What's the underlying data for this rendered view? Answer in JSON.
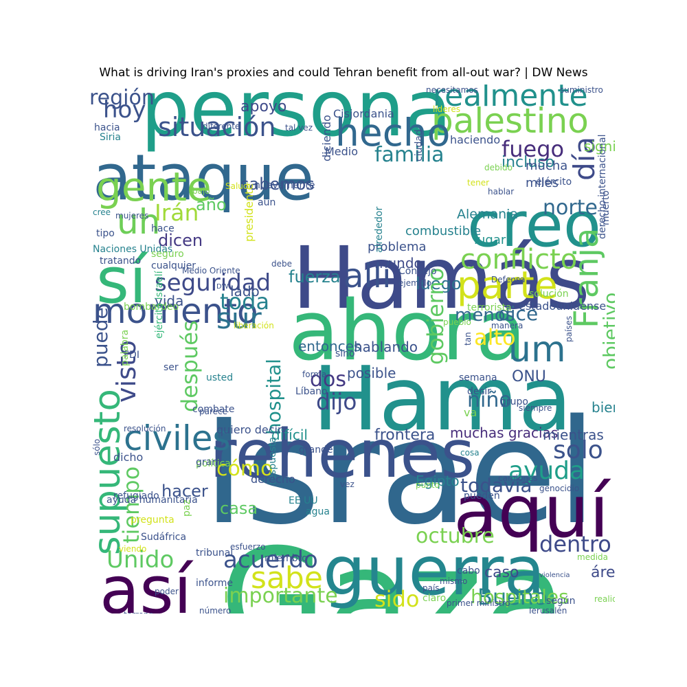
{
  "title": "What is driving Iran's proxies and could Tehran benefit from all-out war? | DW News",
  "words": [
    {
      "t": "Israel",
      "c": "#30678d",
      "v": 0
    },
    {
      "t": "Gaza",
      "c": "#35b779",
      "v": 0
    },
    {
      "t": "Hamás",
      "c": "#3e4a89",
      "v": 0
    },
    {
      "t": "Hama",
      "c": "#21918c",
      "v": 0
    },
    {
      "t": "ahora",
      "c": "#35b779",
      "v": 0
    },
    {
      "t": "persona",
      "c": "#1f9e89",
      "v": 0
    },
    {
      "t": "ataque",
      "c": "#31688e",
      "v": 0
    },
    {
      "t": "rehenes",
      "c": "#3b528b",
      "v": 0
    },
    {
      "t": "guerra",
      "c": "#24868e",
      "v": 0
    },
    {
      "t": "así",
      "c": "#440154",
      "v": 0
    },
    {
      "t": "aquí",
      "c": "#440154",
      "v": 0
    },
    {
      "t": "creo",
      "c": "#21918c",
      "v": 0
    },
    {
      "t": "sí",
      "c": "#35b779",
      "v": 0
    },
    {
      "t": "palestino",
      "c": "#7ad151",
      "v": 0
    },
    {
      "t": "realmente",
      "c": "#21918c",
      "v": 0
    },
    {
      "t": "hecho",
      "c": "#31688e",
      "v": 0
    },
    {
      "t": "situación",
      "c": "#3b528b",
      "v": 0
    },
    {
      "t": "gente",
      "c": "#7ad151",
      "v": 0
    },
    {
      "t": "uh",
      "c": "#6ece58",
      "v": 0
    },
    {
      "t": "parte",
      "c": "#d2e21b",
      "v": 0
    },
    {
      "t": "conflicto",
      "c": "#7ad151",
      "v": 0
    },
    {
      "t": "momento",
      "c": "#3b528b",
      "v": 0
    },
    {
      "t": "allí",
      "c": "#3b528b",
      "v": 0
    },
    {
      "t": "seguridad",
      "c": "#3e4a89",
      "v": 0
    },
    {
      "t": "sur",
      "c": "#2c728e",
      "v": 0
    },
    {
      "t": "toda",
      "c": "#26828e",
      "v": 0
    },
    {
      "t": "civiles",
      "c": "#2c728e",
      "v": 0
    },
    {
      "t": "supuesto",
      "c": "#35b779",
      "v": 1
    },
    {
      "t": "Franja",
      "c": "#5ec962",
      "v": 1
    },
    {
      "t": "um",
      "c": "#2c728e",
      "v": 0
    },
    {
      "t": "día",
      "c": "#3e4a89",
      "v": 1
    },
    {
      "t": "fuego",
      "c": "#472d7b",
      "v": 0
    },
    {
      "t": "familia",
      "c": "#26828e",
      "v": 0
    },
    {
      "t": "hoy",
      "c": "#3b528b",
      "v": 0
    },
    {
      "t": "región",
      "c": "#3b528b",
      "v": 0
    },
    {
      "t": "Irán",
      "c": "#a0da39",
      "v": 0
    },
    {
      "t": "sabemos",
      "c": "#3b528b",
      "v": 0
    },
    {
      "t": "año",
      "c": "#5ec962",
      "v": 0
    },
    {
      "t": "dicen",
      "c": "#443983",
      "v": 0
    },
    {
      "t": "norte",
      "c": "#31688e",
      "v": 0
    },
    {
      "t": "Alemania",
      "c": "#26828e",
      "v": 0
    },
    {
      "t": "apoyo",
      "c": "#3e4a89",
      "v": 0
    },
    {
      "t": "incluso",
      "c": "#26828e",
      "v": 0
    },
    {
      "t": "fuerza",
      "c": "#26828e",
      "v": 0
    },
    {
      "t": "luego",
      "c": "#2c728e",
      "v": 0
    },
    {
      "t": "menos",
      "c": "#31688e",
      "v": 0
    },
    {
      "t": "dice",
      "c": "#31688e",
      "v": 0
    },
    {
      "t": "alto",
      "c": "#fde725",
      "v": 0
    },
    {
      "t": "visto",
      "c": "#3e4a89",
      "v": 1
    },
    {
      "t": "después",
      "c": "#5ec962",
      "v": 1
    },
    {
      "t": "puede",
      "c": "#3b528b",
      "v": 1
    },
    {
      "t": "hospital",
      "c": "#21918c",
      "v": 1
    },
    {
      "t": "dos",
      "c": "#443983",
      "v": 0
    },
    {
      "t": "dijo",
      "c": "#3e4a89",
      "v": 0
    },
    {
      "t": "gobierno",
      "c": "#5ec962",
      "v": 1
    },
    {
      "t": "objetivo",
      "c": "#5ec962",
      "v": 1
    },
    {
      "t": "ONU",
      "c": "#3b528b",
      "v": 0
    },
    {
      "t": "niño",
      "c": "#31688e",
      "v": 0
    },
    {
      "t": "entonces",
      "c": "#31688e",
      "v": 0
    },
    {
      "t": "hablando",
      "c": "#3b528b",
      "v": 0
    },
    {
      "t": "posible",
      "c": "#3b528b",
      "v": 0
    },
    {
      "t": "solo",
      "c": "#3b528b",
      "v": 0
    },
    {
      "t": "ayuda",
      "c": "#1f9e89",
      "v": 0
    },
    {
      "t": "cómo",
      "c": "#d2e21b",
      "v": 0
    },
    {
      "t": "hacer",
      "c": "#3b528b",
      "v": 0
    },
    {
      "t": "casa",
      "c": "#5ec962",
      "v": 0
    },
    {
      "t": "tiempo",
      "c": "#5ec962",
      "v": 1
    },
    {
      "t": "todavía",
      "c": "#3b528b",
      "v": 0
    },
    {
      "t": "Egipto",
      "c": "#26828e",
      "v": 0
    },
    {
      "t": "octubre",
      "c": "#7ad151",
      "v": 0
    },
    {
      "t": "dentro",
      "c": "#3e4a89",
      "v": 0
    },
    {
      "t": "Unido",
      "c": "#5ec962",
      "v": 0
    },
    {
      "t": "acuerdo",
      "c": "#3b528b",
      "v": 0
    },
    {
      "t": "sabe",
      "c": "#d2e21b",
      "v": 0
    },
    {
      "t": "importante",
      "c": "#7ad151",
      "v": 0
    },
    {
      "t": "sido",
      "c": "#d2e21b",
      "v": 0
    },
    {
      "t": "Bueno",
      "c": "#26828e",
      "v": 0
    },
    {
      "t": "hospitales",
      "c": "#7ad151",
      "v": 0
    },
    {
      "t": "caso",
      "c": "#3e4a89",
      "v": 0
    },
    {
      "t": "área",
      "c": "#3e4a89",
      "v": 0
    },
    {
      "t": "frontera",
      "c": "#3b528b",
      "v": 0
    },
    {
      "t": "difícil",
      "c": "#21918c",
      "v": 0
    },
    {
      "t": "muchas gracias",
      "c": "#472d7b",
      "v": 0
    },
    {
      "t": "mientras",
      "c": "#3b528b",
      "v": 0
    },
    {
      "t": "bien",
      "c": "#26828e",
      "v": 0
    },
    {
      "t": "lado",
      "c": "#3b528b",
      "v": 0
    },
    {
      "t": "vida",
      "c": "#3b528b",
      "v": 0
    },
    {
      "t": "mundo",
      "c": "#3e4a89",
      "v": 0
    },
    {
      "t": "combustible",
      "c": "#26828e",
      "v": 0
    },
    {
      "t": "problema",
      "c": "#3b528b",
      "v": 0
    },
    {
      "t": "lugar",
      "c": "#21918c",
      "v": 0
    },
    {
      "t": "mucha",
      "c": "#3b528b",
      "v": 0
    },
    {
      "t": "miles",
      "c": "#3b528b",
      "v": 0
    },
    {
      "t": "significa",
      "c": "#7ad151",
      "v": 0
    },
    {
      "t": "haciendo",
      "c": "#3b528b",
      "v": 0
    },
    {
      "t": "Cisjordania",
      "c": "#3b528b",
      "v": 0
    },
    {
      "t": "necesitamos",
      "c": "#3b528b",
      "v": 0
    },
    {
      "t": "suministro",
      "c": "#3b528b",
      "v": 0
    },
    {
      "t": "líderes",
      "c": "#d2e21b",
      "v": 0
    },
    {
      "t": "diferente",
      "c": "#3b528b",
      "v": 0
    },
    {
      "t": "tal vez",
      "c": "#3b528b",
      "v": 0
    },
    {
      "t": "hacia",
      "c": "#3b528b",
      "v": 0
    },
    {
      "t": "Siria",
      "c": "#26828e",
      "v": 0
    },
    {
      "t": "diciendo",
      "c": "#3b528b",
      "v": 1
    },
    {
      "t": "Medio",
      "c": "#3b528b",
      "v": 0
    },
    {
      "t": "ciudad",
      "c": "#3b528b",
      "v": 1
    },
    {
      "t": "debido",
      "c": "#7ad151",
      "v": 0
    },
    {
      "t": "tener",
      "c": "#d2e21b",
      "v": 0
    },
    {
      "t": "hablar",
      "c": "#3b528b",
      "v": 0
    },
    {
      "t": "ejército",
      "c": "#3b528b",
      "v": 0
    },
    {
      "t": "muerto",
      "c": "#3b528b",
      "v": 1
    },
    {
      "t": "derecho internacional",
      "c": "#3b528b",
      "v": 1
    },
    {
      "t": "bajo",
      "c": "#7ad151",
      "v": 0
    },
    {
      "t": "Salud",
      "c": "#d2e21b",
      "v": 0
    },
    {
      "t": "nuevamente",
      "c": "#3b528b",
      "v": 0
    },
    {
      "t": "aún",
      "c": "#3b528b",
      "v": 0
    },
    {
      "t": "cree",
      "c": "#26828e",
      "v": 0
    },
    {
      "t": "mujeres",
      "c": "#3b528b",
      "v": 0
    },
    {
      "t": "presidente",
      "c": "#d2e21b",
      "v": 1
    },
    {
      "t": "tipo",
      "c": "#3b528b",
      "v": 0
    },
    {
      "t": "hace",
      "c": "#3b528b",
      "v": 0
    },
    {
      "t": "Naciones Unidas",
      "c": "#26828e",
      "v": 0
    },
    {
      "t": "seguro",
      "c": "#7ad151",
      "v": 0
    },
    {
      "t": "tratando",
      "c": "#3b528b",
      "v": 0
    },
    {
      "t": "cualquier",
      "c": "#3b528b",
      "v": 0
    },
    {
      "t": "Medio Oriente",
      "c": "#3b528b",
      "v": 0
    },
    {
      "t": "DW",
      "c": "#3b528b",
      "v": 0
    },
    {
      "t": "alrededor",
      "c": "#26828e",
      "v": 1
    },
    {
      "t": "debe",
      "c": "#3b528b",
      "v": 0
    },
    {
      "t": "Consejo",
      "c": "#3b528b",
      "v": 0
    },
    {
      "t": "ejemplo",
      "c": "#3b528b",
      "v": 0
    },
    {
      "t": "Defensa",
      "c": "#3b528b",
      "v": 0
    },
    {
      "t": "solución",
      "c": "#7ad151",
      "v": 0
    },
    {
      "t": "estadounidense",
      "c": "#3b528b",
      "v": 0
    },
    {
      "t": "terrorista",
      "c": "#7ad151",
      "v": 0
    },
    {
      "t": "bombardeo",
      "c": "#7ad151",
      "v": 0
    },
    {
      "t": "liberación",
      "c": "#d2e21b",
      "v": 0
    },
    {
      "t": "pueblo",
      "c": "#7ad151",
      "v": 0
    },
    {
      "t": "manera",
      "c": "#3b528b",
      "v": 0
    },
    {
      "t": "países",
      "c": "#3b528b",
      "v": 1
    },
    {
      "t": "FDI",
      "c": "#3b528b",
      "v": 0
    },
    {
      "t": "ejército israelí",
      "c": "#35b779",
      "v": 1
    },
    {
      "t": "ser",
      "c": "#3b528b",
      "v": 0
    },
    {
      "t": "usted",
      "c": "#26828e",
      "v": 0
    },
    {
      "t": "sino",
      "c": "#3b528b",
      "v": 0
    },
    {
      "t": "forma",
      "c": "#3b528b",
      "v": 0
    },
    {
      "t": "Líbano",
      "c": "#3b528b",
      "v": 0
    },
    {
      "t": "semana",
      "c": "#3b528b",
      "v": 0
    },
    {
      "t": "decir",
      "c": "#3b528b",
      "v": 0
    },
    {
      "t": "grupo",
      "c": "#3b528b",
      "v": 0
    },
    {
      "t": "siempre",
      "c": "#3b528b",
      "v": 0
    },
    {
      "t": "va",
      "c": "#7ad151",
      "v": 0
    },
    {
      "t": "tan",
      "c": "#3b528b",
      "v": 1
    },
    {
      "t": "palabra",
      "c": "#7ad151",
      "v": 1
    },
    {
      "t": "combate",
      "c": "#3b528b",
      "v": 0
    },
    {
      "t": "parece",
      "c": "#3b528b",
      "v": 0
    },
    {
      "t": "quiero decir",
      "c": "#3b528b",
      "v": 0
    },
    {
      "t": "resolución",
      "c": "#3b528b",
      "v": 0
    },
    {
      "t": "grande",
      "c": "#3b528b",
      "v": 0
    },
    {
      "t": "política",
      "c": "#7ad151",
      "v": 0
    },
    {
      "t": "respuesta",
      "c": "#26828e",
      "v": 1
    },
    {
      "t": "vez",
      "c": "#3b528b",
      "v": 0
    },
    {
      "t": "sólo",
      "c": "#3b528b",
      "v": 1
    },
    {
      "t": "dicho",
      "c": "#3b528b",
      "v": 0
    },
    {
      "t": "derecho",
      "c": "#3b528b",
      "v": 0
    },
    {
      "t": "ayuda humanitaria",
      "c": "#3b528b",
      "v": 0
    },
    {
      "t": "gran",
      "c": "#3b528b",
      "v": 0
    },
    {
      "t": "camiones",
      "c": "#3b528b",
      "v": 0
    },
    {
      "t": "pueden",
      "c": "#3b528b",
      "v": 0
    },
    {
      "t": "genocidio",
      "c": "#3b528b",
      "v": 0
    },
    {
      "t": "cosa",
      "c": "#26828e",
      "v": 0
    },
    {
      "t": "refugiado",
      "c": "#3b528b",
      "v": 0
    },
    {
      "t": "punto",
      "c": "#7ad151",
      "v": 0
    },
    {
      "t": "pregunta",
      "c": "#d2e21b",
      "v": 0
    },
    {
      "t": "EE UU",
      "c": "#26828e",
      "v": 0
    },
    {
      "t": "agua",
      "c": "#26828e",
      "v": 0
    },
    {
      "t": "paz",
      "c": "#7ad151",
      "v": 1
    },
    {
      "t": "Sudáfrica",
      "c": "#3b528b",
      "v": 0
    },
    {
      "t": "viendo",
      "c": "#d2e21b",
      "v": 0
    },
    {
      "t": "miembro",
      "c": "#3b528b",
      "v": 0
    },
    {
      "t": "tribunal",
      "c": "#3b528b",
      "v": 0
    },
    {
      "t": "esfuerzo",
      "c": "#3b528b",
      "v": 0
    },
    {
      "t": "medida",
      "c": "#7ad151",
      "v": 0
    },
    {
      "t": "poder",
      "c": "#3b528b",
      "v": 0
    },
    {
      "t": "informe",
      "c": "#3b528b",
      "v": 0
    },
    {
      "t": "número",
      "c": "#3b528b",
      "v": 0
    },
    {
      "t": "Jerusalén",
      "c": "#3b528b",
      "v": 0
    },
    {
      "t": "según",
      "c": "#3b528b",
      "v": 0
    },
    {
      "t": "primer ministro",
      "c": "#3b528b",
      "v": 0
    },
    {
      "t": "terreno",
      "c": "#3b528b",
      "v": 0
    },
    {
      "t": "cabo",
      "c": "#3b528b",
      "v": 0
    },
    {
      "t": "violencia",
      "c": "#3b528b",
      "v": 0
    },
    {
      "t": "claro",
      "c": "#7ad151",
      "v": 0
    },
    {
      "t": "mismo",
      "c": "#3b528b",
      "v": 0
    },
    {
      "t": "país",
      "c": "#3b528b",
      "v": 0
    },
    {
      "t": "realidad",
      "c": "#7ad151",
      "v": 0
    },
    {
      "t": "podría",
      "c": "#3b528b",
      "v": 0
    },
    {
      "t": "través",
      "c": "#3b528b",
      "v": 0
    },
    {
      "t": "simplemente",
      "c": "#26828e",
      "v": 0
    },
    {
      "t": "millones",
      "c": "#3b528b",
      "v": 0
    }
  ]
}
